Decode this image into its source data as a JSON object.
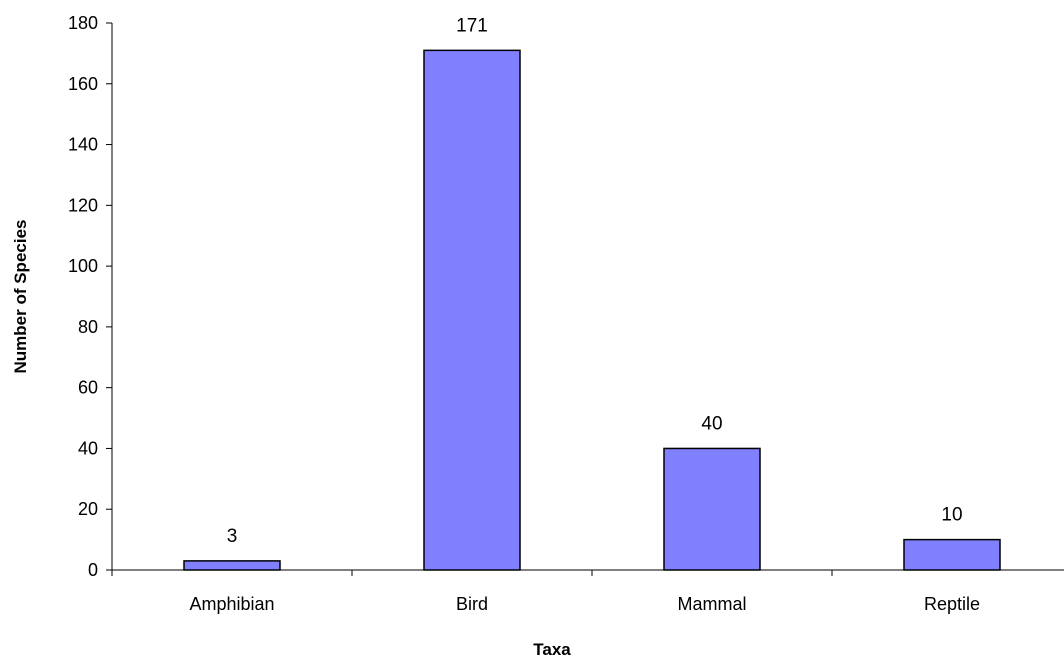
{
  "chart_data": {
    "type": "bar",
    "title": "",
    "xlabel": "Taxa",
    "ylabel": "Number of Species",
    "categories": [
      "Amphibian",
      "Bird",
      "Mammal",
      "Reptile"
    ],
    "values": [
      3,
      171,
      40,
      10
    ],
    "data_labels": [
      "3",
      "171",
      "40",
      "10"
    ],
    "ylim": [
      0,
      180
    ],
    "y_ticks": [
      0,
      20,
      40,
      60,
      80,
      100,
      120,
      140,
      160,
      180
    ],
    "grid": false,
    "legend": "none",
    "bar_color": "#8080FF",
    "bar_edge_color": "#000000"
  }
}
